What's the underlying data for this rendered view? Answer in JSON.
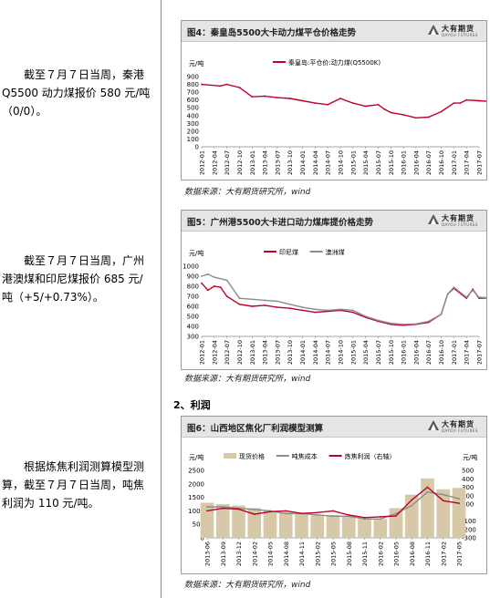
{
  "paragraphs": [
    {
      "lines": [
        "截至７月７日当周，秦港",
        "Q5500 动力煤报价 580 元/吨",
        "（0/0）。"
      ]
    },
    {
      "lines": [
        "截至７月７日当周，广州",
        "港澳煤和印尼煤报价 685 元/",
        "吨（+5/+0.73%）。"
      ]
    },
    {
      "lines": [
        "根据炼焦利润测算模型测",
        "算，截至７月７日当周，吨焦",
        "利润为 110 元/吨。"
      ]
    }
  ],
  "section_heading": "2、利润",
  "logo": {
    "cn": "大有期货",
    "en": "DAYOU FUTURES"
  },
  "colors": {
    "red": "#c0002a",
    "gray": "#8c8c8c",
    "tan": "#d7c8a8"
  },
  "chart_data": [
    {
      "type": "line",
      "title": "图4：秦皇岛5500大卡动力煤平仓价格走势",
      "yunit": "元/吨",
      "ylim": [
        0,
        900
      ],
      "yticks": [
        0,
        100,
        200,
        300,
        400,
        500,
        600,
        700,
        800,
        900
      ],
      "categories": [
        "2012-01",
        "2012-04",
        "2012-07",
        "2012-10",
        "2013-01",
        "2013-04",
        "2013-07",
        "2013-10",
        "2014-01",
        "2014-04",
        "2014-07",
        "2014-10",
        "2015-01",
        "2015-04",
        "2015-07",
        "2015-10",
        "2016-01",
        "2016-04",
        "2016-07",
        "2016-10",
        "2017-01",
        "2017-04",
        "2017-07"
      ],
      "series": [
        {
          "name": "秦皇岛:平仓价:动力煤(Q5500K)",
          "color": "#c0002a",
          "x": [
            0,
            1.5,
            2,
            3,
            4,
            5,
            6,
            7,
            8,
            9,
            10,
            11,
            12,
            13,
            14,
            14.5,
            15,
            16,
            17,
            18,
            19,
            20,
            20.5,
            21,
            22,
            23
          ],
          "values": [
            800,
            780,
            800,
            760,
            640,
            650,
            630,
            620,
            590,
            560,
            540,
            620,
            560,
            520,
            540,
            480,
            440,
            410,
            370,
            380,
            450,
            560,
            560,
            600,
            590,
            580
          ]
        }
      ],
      "source": "数据来源：大有期货研究所，wind"
    },
    {
      "type": "line",
      "title": "图5：广州港5500大卡进口动力煤库提价格走势",
      "yunit": "元/吨",
      "ylim": [
        300,
        1000
      ],
      "yticks": [
        300,
        400,
        500,
        600,
        700,
        800,
        900,
        1000
      ],
      "categories": [
        "2012-01",
        "2012-04",
        "2012-07",
        "2012-10",
        "2013-01",
        "2013-04",
        "2013-07",
        "2013-10",
        "2014-01",
        "2014-04",
        "2014-07",
        "2014-10",
        "2015-01",
        "2015-04",
        "2015-07",
        "2015-10",
        "2016-01",
        "2016-04",
        "2016-07",
        "2016-10",
        "2017-01",
        "2017-04",
        "2017-07"
      ],
      "series": [
        {
          "name": "印尼煤",
          "color": "#c0002a",
          "x": [
            0,
            0.5,
            1,
            1.5,
            2,
            3,
            4,
            5,
            6,
            7,
            8,
            9,
            10,
            11,
            12,
            13,
            14,
            15,
            16,
            17,
            18,
            19,
            19.5,
            20,
            21,
            21.5,
            22,
            23
          ],
          "values": [
            830,
            760,
            800,
            790,
            700,
            620,
            600,
            610,
            590,
            580,
            560,
            540,
            550,
            560,
            540,
            490,
            450,
            420,
            410,
            420,
            440,
            520,
            720,
            780,
            680,
            770,
            680,
            685
          ]
        },
        {
          "name": "澳洲煤",
          "color": "#8c8c8c",
          "x": [
            0,
            0.5,
            1,
            2,
            3,
            4,
            5,
            6,
            7,
            8,
            9,
            10,
            11,
            12,
            13,
            14,
            15,
            16,
            17,
            18,
            19,
            19.5,
            20,
            21,
            21.5,
            22,
            23
          ],
          "values": [
            900,
            920,
            890,
            860,
            680,
            670,
            660,
            650,
            620,
            590,
            570,
            560,
            570,
            560,
            500,
            460,
            430,
            420,
            425,
            450,
            520,
            720,
            790,
            690,
            760,
            690,
            685
          ]
        }
      ],
      "source": "数据来源：大有期货研究所，wind"
    },
    {
      "type": "bar+line",
      "title": "图6：山西地区焦化厂利润模型测算",
      "yunit": "元/吨",
      "ylim": [
        0,
        2500
      ],
      "yticks": [
        0,
        500,
        1000,
        1500,
        2000,
        2500
      ],
      "y2lim": [
        -300,
        500
      ],
      "y2ticks": [
        -300,
        -200,
        -100,
        0,
        100,
        200,
        300,
        400,
        500
      ],
      "categories": [
        "2013-06",
        "2013-09",
        "2013-12",
        "2014-02",
        "2014-05",
        "2014-08",
        "2014-11",
        "2015-02",
        "2015-05",
        "2015-08",
        "2015-11",
        "2016-02",
        "2016-05",
        "2016-08",
        "2016-11",
        "2017-02",
        "2017-05"
      ],
      "series": [
        {
          "name": "现货价格",
          "color": "#d7c8a8",
          "kind": "bar",
          "x": [
            0,
            1,
            2,
            3,
            4,
            5,
            6,
            7,
            8,
            9,
            10,
            11,
            12,
            13,
            14,
            15,
            16
          ],
          "values": [
            1300,
            1250,
            1200,
            1100,
            1000,
            950,
            900,
            850,
            850,
            800,
            700,
            700,
            1100,
            1600,
            2200,
            1800,
            1850
          ]
        },
        {
          "name": "吨焦成本",
          "color": "#8c8c8c",
          "kind": "line",
          "x": [
            0,
            1,
            2,
            3,
            4,
            5,
            6,
            7,
            8,
            9,
            10,
            11,
            12,
            13,
            14,
            15,
            16
          ],
          "values": [
            1150,
            1150,
            1100,
            1050,
            1000,
            900,
            900,
            850,
            800,
            800,
            700,
            700,
            900,
            1200,
            1700,
            1600,
            1450
          ]
        },
        {
          "name": "炼焦利润（右轴）",
          "color": "#c0002a",
          "kind": "line",
          "x": [
            0,
            1,
            2,
            3,
            4,
            5,
            6,
            7,
            8,
            9,
            10,
            11,
            12,
            13,
            14,
            15,
            16
          ],
          "values": [
            20,
            50,
            40,
            -20,
            10,
            20,
            -10,
            0,
            20,
            -30,
            -60,
            -50,
            -40,
            150,
            300,
            140,
            110
          ]
        }
      ],
      "source": "数据来源：大有期货研究所，wind"
    }
  ]
}
